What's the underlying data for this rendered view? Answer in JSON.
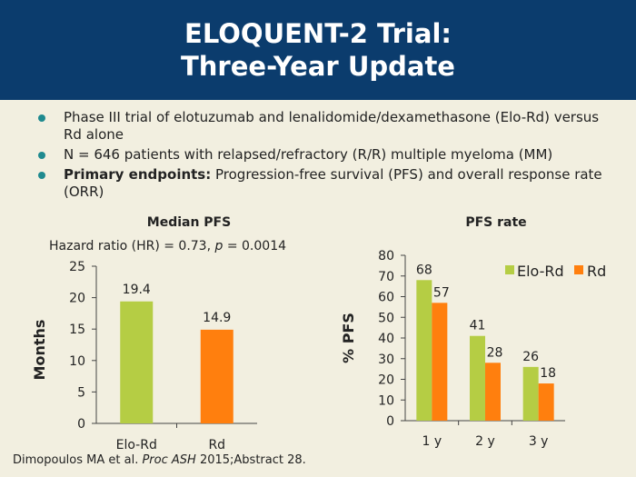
{
  "header": {
    "title_line1": "ELOQUENT-2 Trial:",
    "title_line2": "Three-Year Update"
  },
  "bullets": [
    {
      "bold": "",
      "text": "Phase III trial of elotuzumab and lenalidomide/dexamethasone (Elo-Rd) versus Rd alone"
    },
    {
      "bold": "",
      "text": "N = 646 patients with relapsed/refractory (R/R) multiple myeloma (MM)"
    },
    {
      "bold": "Primary endpoints:",
      "text": " Progression-free survival (PFS) and overall response rate (ORR)"
    }
  ],
  "colors": {
    "header_bg": "#0b3c6d",
    "bullet_dot": "#1f8a8f",
    "elo_rd": "#b5cd44",
    "rd": "#ff7f0e"
  },
  "chart_data": [
    {
      "type": "bar",
      "title": "Median PFS",
      "subtitle_prefix": "Hazard ratio (HR) = 0.73, ",
      "subtitle_p": "p",
      "subtitle_suffix": " = 0.0014",
      "categories": [
        "Elo-Rd",
        "Rd"
      ],
      "values": [
        19.4,
        14.9
      ],
      "value_labels": [
        "19.4",
        "14.9"
      ],
      "ylabel": "Months",
      "ylim": [
        0,
        25
      ],
      "yticks": [
        0,
        5,
        10,
        15,
        20,
        25
      ],
      "grid": false,
      "colors": [
        "#b5cd44",
        "#ff7f0e"
      ]
    },
    {
      "type": "bar",
      "title": "PFS rate",
      "categories": [
        "1 y",
        "2 y",
        "3 y"
      ],
      "series": [
        {
          "name": "Elo-Rd",
          "values": [
            68,
            41,
            26
          ],
          "color": "#b5cd44"
        },
        {
          "name": "Rd",
          "values": [
            57,
            28,
            18
          ],
          "color": "#ff7f0e"
        }
      ],
      "ylabel": "% PFS",
      "ylim": [
        0,
        80
      ],
      "yticks": [
        0,
        10,
        20,
        30,
        40,
        50,
        60,
        70,
        80
      ],
      "legend": "top-right",
      "grid": false
    }
  ],
  "footer": {
    "prefix": "Dimopoulos MA et al. ",
    "journal": "Proc ASH",
    "suffix": " 2015;Abstract 28."
  }
}
